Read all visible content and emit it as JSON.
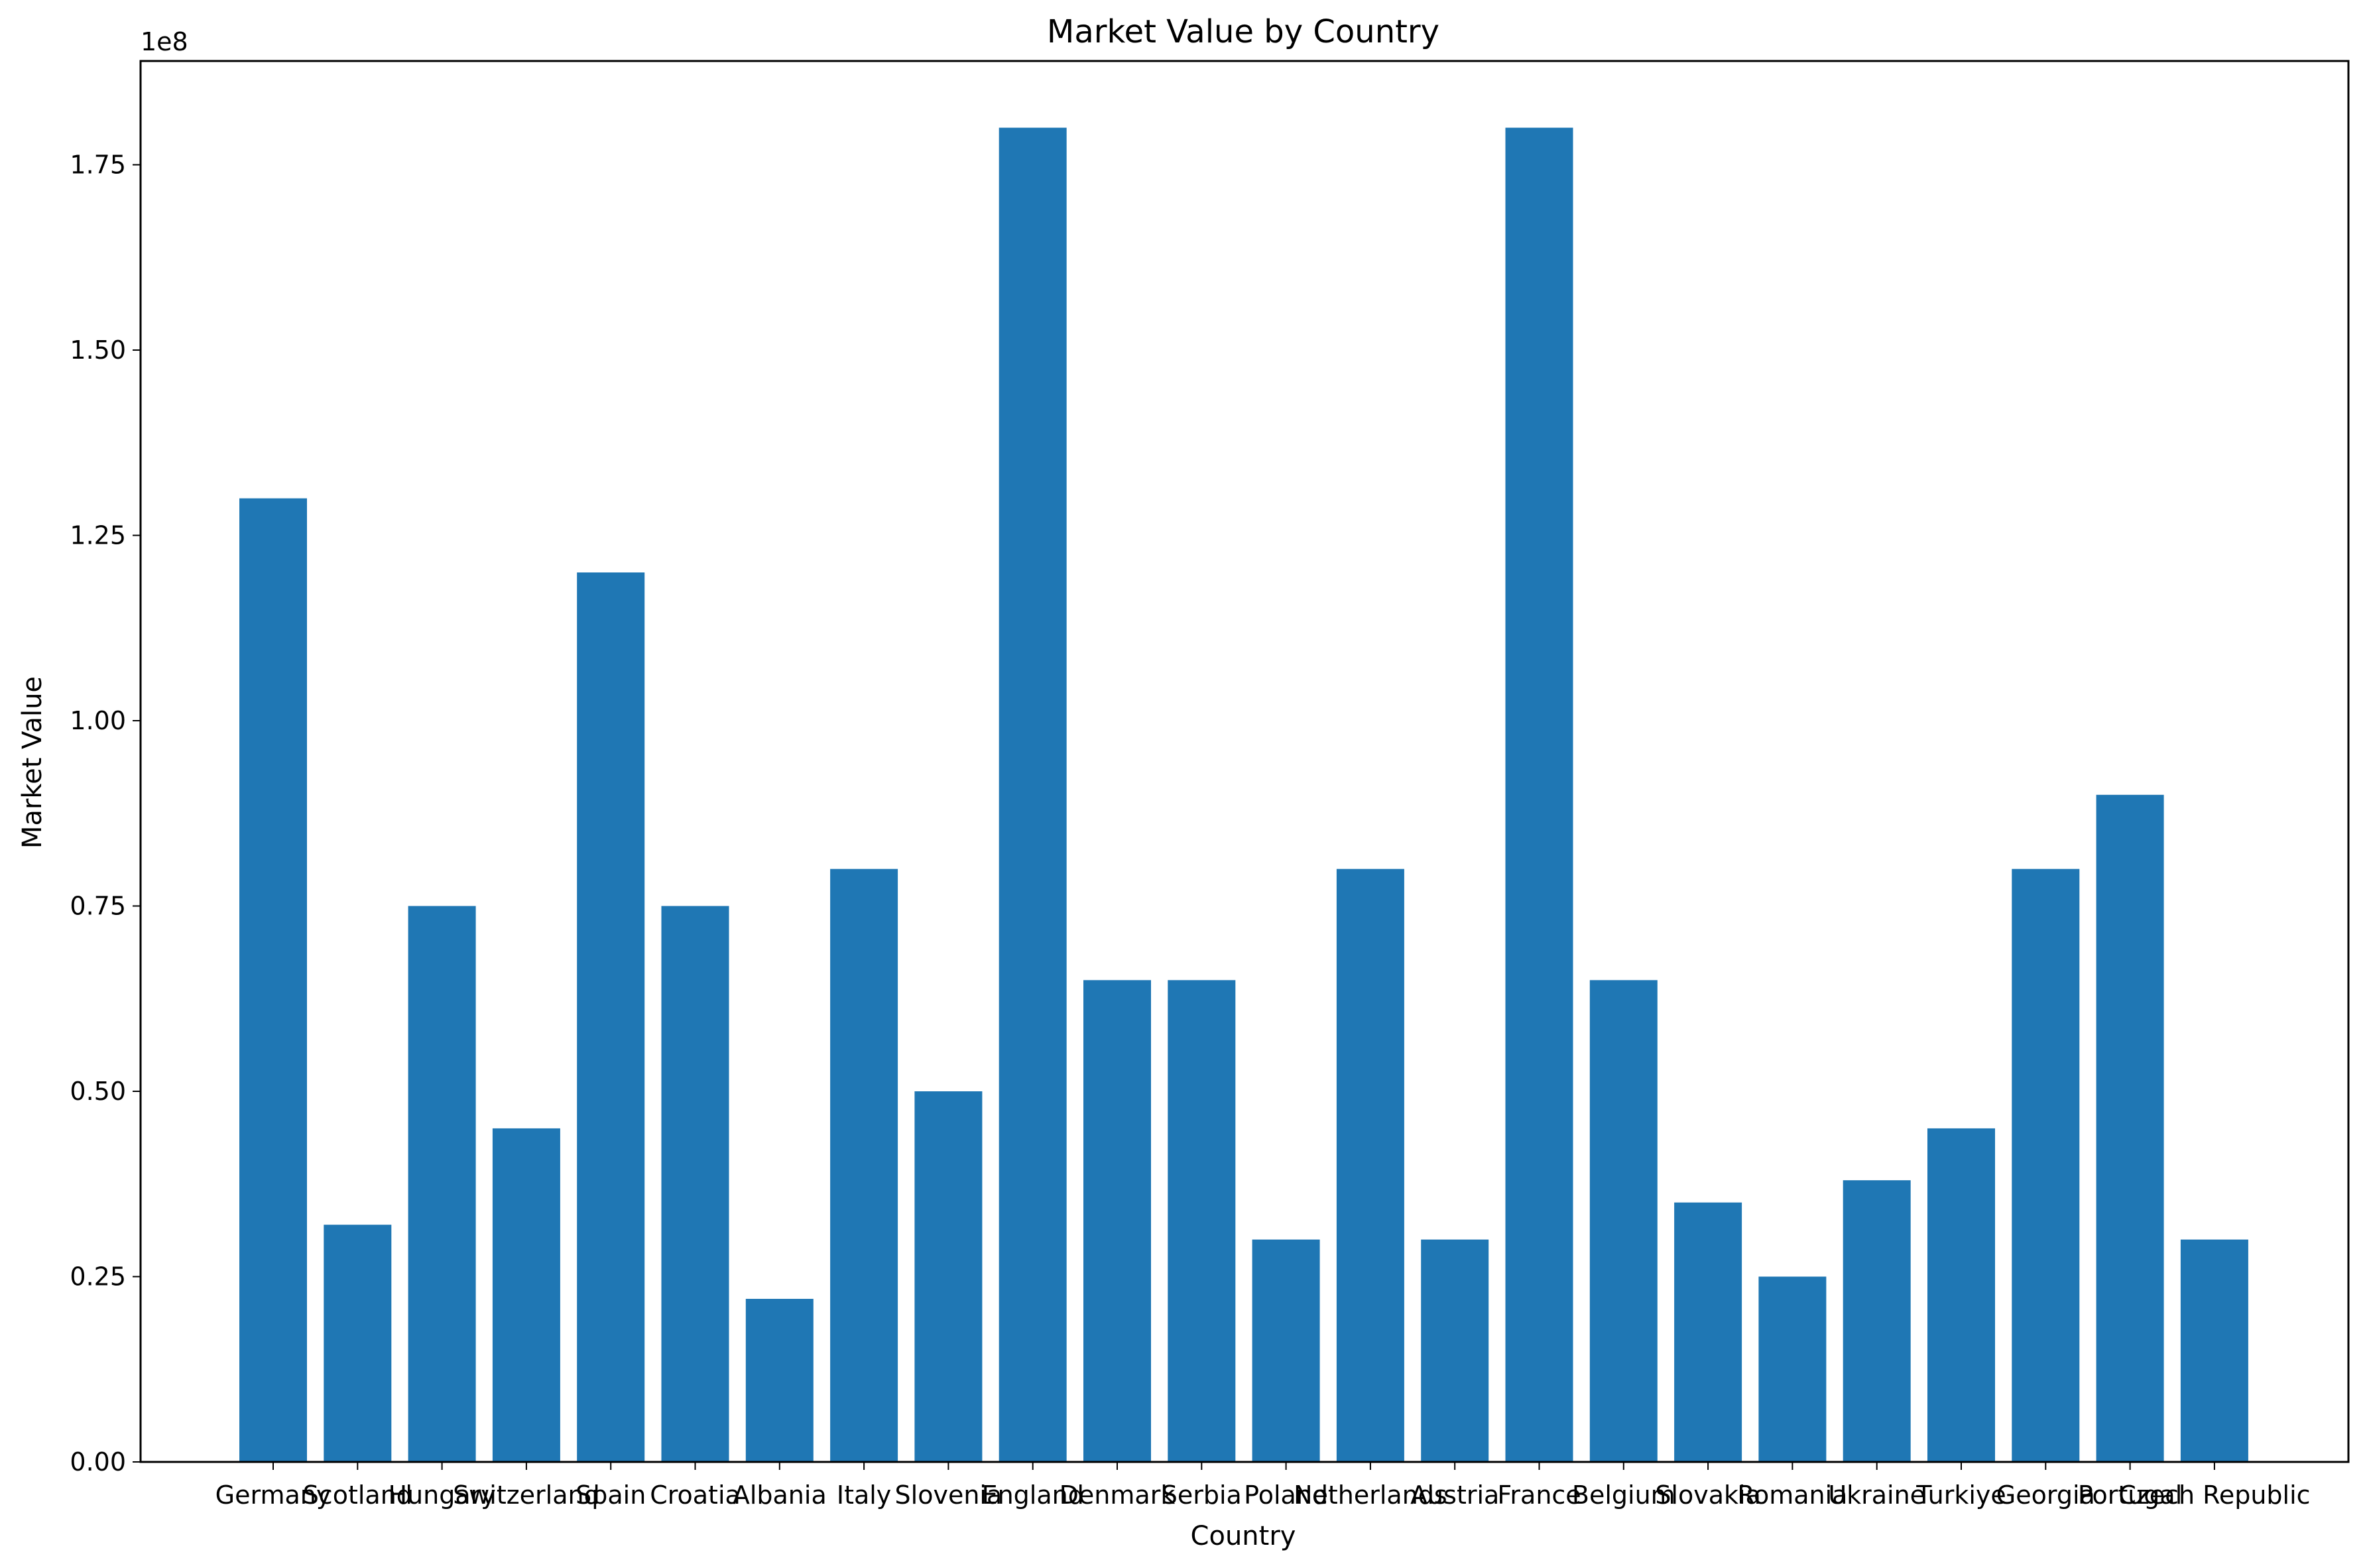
{
  "chart_data": {
    "type": "bar",
    "title": "Market Value by Country",
    "xlabel": "Country",
    "ylabel": "Market Value",
    "y_offset_label": "1e8",
    "y_scale": 100000000,
    "ylim": [
      0,
      189000000
    ],
    "yticks": [
      0,
      25000000,
      50000000,
      75000000,
      100000000,
      125000000,
      150000000,
      175000000
    ],
    "ytick_labels": [
      "0.00",
      "0.25",
      "0.50",
      "0.75",
      "1.00",
      "1.25",
      "1.50",
      "1.75"
    ],
    "grid": false,
    "legend": "none",
    "bar_color": "#1f77b4",
    "categories": [
      "Germany",
      "Scotland",
      "Hungary",
      "Switzerland",
      "Spain",
      "Croatia",
      "Albania",
      "Italy",
      "Slovenia",
      "England",
      "Denmark",
      "Serbia",
      "Poland",
      "Netherlands",
      "Austria",
      "France",
      "Belgium",
      "Slovakia",
      "Romania",
      "Ukraine",
      "Turkiye",
      "Georgia",
      "Portugal",
      "Czech Republic"
    ],
    "values": [
      130000000,
      32000000,
      75000000,
      45000000,
      120000000,
      75000000,
      22000000,
      80000000,
      50000000,
      180000000,
      65000000,
      65000000,
      30000000,
      80000000,
      30000000,
      180000000,
      65000000,
      35000000,
      25000000,
      38000000,
      45000000,
      80000000,
      90000000,
      30000000
    ]
  }
}
